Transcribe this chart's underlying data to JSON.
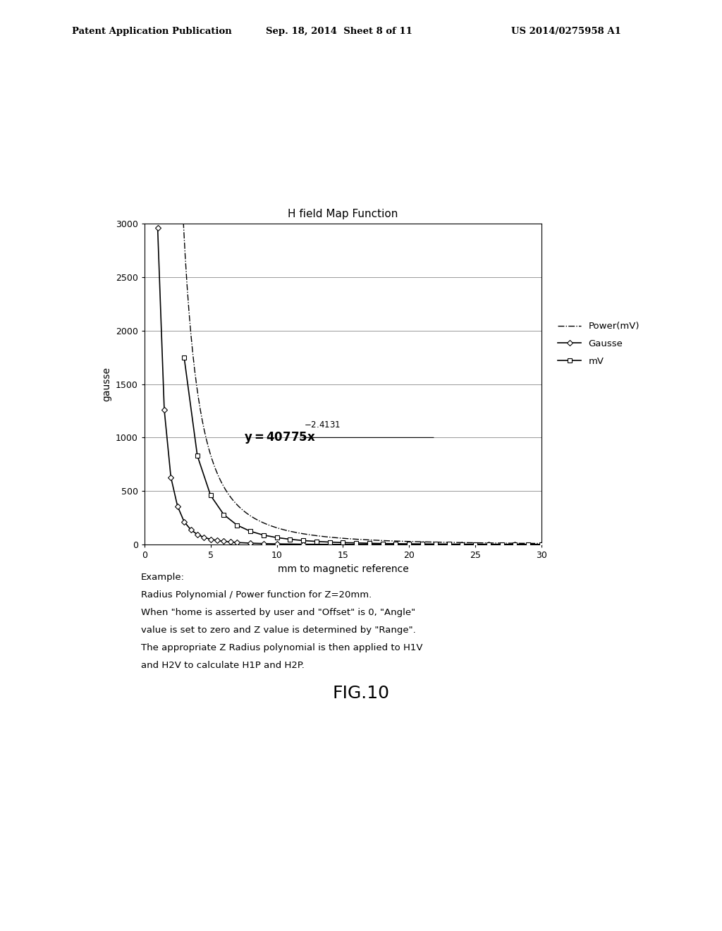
{
  "title": "H field Map Function",
  "xlabel": "mm to magnetic reference",
  "ylabel": "gausse",
  "xlim": [
    0,
    30
  ],
  "ylim": [
    0,
    3000
  ],
  "yticks": [
    0,
    500,
    1000,
    1500,
    2000,
    2500,
    3000
  ],
  "xticks": [
    0,
    5,
    10,
    15,
    20,
    25,
    30
  ],
  "legend_labels": [
    "Gausse",
    "mV",
    "Power(mV)"
  ],
  "background_color": "#ffffff",
  "header_left": "Patent Application Publication",
  "header_center": "Sep. 18, 2014  Sheet 8 of 11",
  "header_right": "US 2014/0275958 A1",
  "fig_label": "FIG.10",
  "caption_lines": [
    [
      "Example:",
      false
    ],
    [
      "Radius Polynomial / Power function for Z=20mm.",
      false
    ],
    [
      "When \"home is asserted by user and \"Offset\" is 0, \"Angle\"",
      false
    ],
    [
      "value is set to zero and Z value is determined by \"Range\".",
      false
    ],
    [
      "The appropriate Z Radius polynomial is then applied to H1V",
      false
    ],
    [
      "and H2V to calculate H1P and H2P.",
      false
    ]
  ],
  "gausse_x": [
    1,
    1.5,
    2,
    2.5,
    3,
    3.5,
    4,
    4.5,
    5,
    5.5,
    6,
    6.5,
    7,
    8,
    9,
    10,
    12,
    14,
    16,
    18,
    20,
    22,
    24,
    26,
    28,
    30
  ],
  "gausse_y": [
    2960,
    1260,
    630,
    360,
    215,
    140,
    95,
    68,
    50,
    39,
    31,
    25,
    20,
    14,
    10,
    7,
    4,
    2.5,
    1.8,
    1.3,
    1.0,
    0.8,
    0.6,
    0.5,
    0.4,
    0.3
  ],
  "mv_x": [
    3,
    4,
    5,
    6,
    7,
    8,
    9,
    10,
    11,
    12,
    13,
    14,
    15,
    16,
    17,
    18,
    19,
    20,
    21,
    22,
    23,
    24,
    25,
    26,
    27,
    28,
    29,
    30
  ],
  "mv_y": [
    1750,
    830,
    460,
    280,
    182,
    125,
    89,
    66,
    50,
    38,
    30,
    24,
    19,
    16,
    13,
    10.5,
    9,
    7.5,
    6.5,
    5.6,
    4.9,
    4.3,
    3.8,
    3.4,
    3.0,
    2.7,
    2.4,
    2.2
  ],
  "power_x_start": 1.2,
  "power_x_end": 30,
  "power_a": 40775,
  "power_b": -2.4131,
  "eq_x": 7.5,
  "eq_y": 1000,
  "eq_line_x_end": 22
}
